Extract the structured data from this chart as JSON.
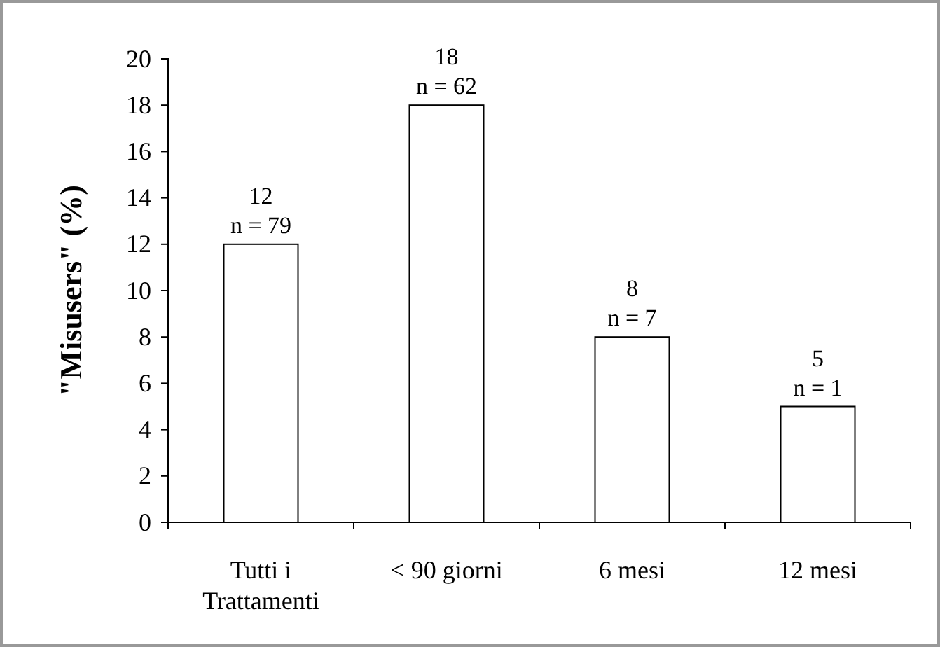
{
  "chart_data": {
    "type": "bar",
    "ylabel": "\"Misusers\" (%)",
    "categories": [
      "Tutti i Trattamenti",
      "< 90 giorni",
      "6 mesi",
      "12 mesi"
    ],
    "values": [
      12,
      18,
      8,
      5
    ],
    "color": "#ffffff",
    "value_labels": [
      "12\nn = 79",
      "18\nn = 62",
      "8\nn = 7",
      "5\nn = 1"
    ],
    "ylim": [
      0,
      20
    ],
    "yticks": [
      0,
      2,
      4,
      6,
      8,
      10,
      12,
      14,
      16,
      18,
      20
    ],
    "grid": false
  }
}
